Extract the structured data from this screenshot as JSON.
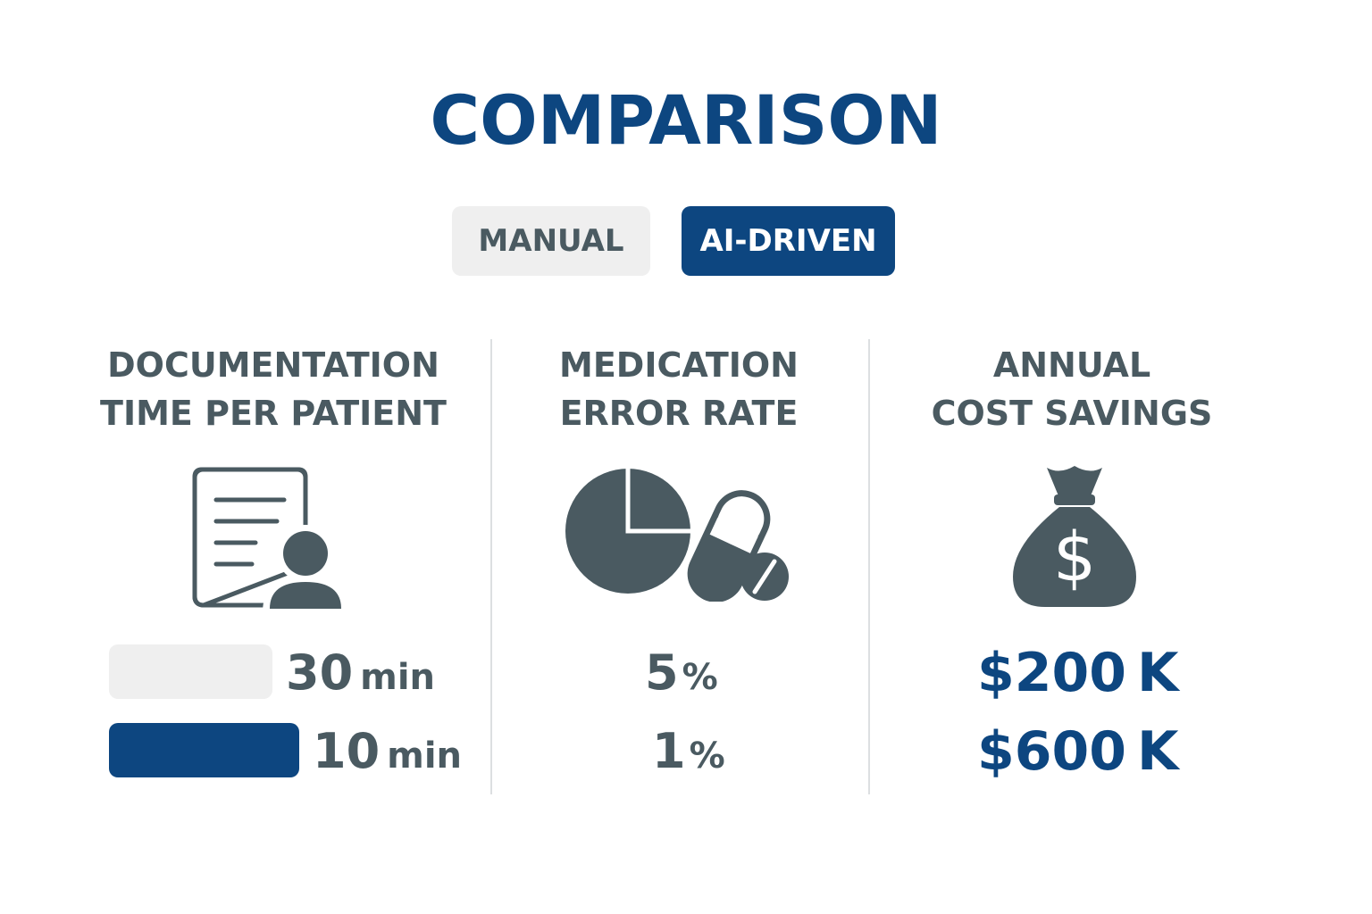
{
  "title": "COMPARISON",
  "legend": {
    "manual_label": "MANUAL",
    "ai_label": "AI-DRIVEN"
  },
  "colors": {
    "accent": "#0d4680",
    "text": "#4a5a61",
    "manual_fill": "#efefef",
    "divider": "#dcdfe1"
  },
  "metrics": [
    {
      "title_line1": "DOCUMENTATION",
      "title_line2": "TIME PER PATIENT",
      "icon": "document-patient-icon",
      "manual_value": "30",
      "manual_unit": "min",
      "ai_value": "10",
      "ai_unit": "min"
    },
    {
      "title_line1": "MEDICATION",
      "title_line2": "ERROR RATE",
      "icon": "pie-chart-pills-icon",
      "manual_value": "5",
      "manual_unit": "%",
      "ai_value": "1",
      "ai_unit": "%"
    },
    {
      "title_line1": "ANNUAL",
      "title_line2": "COST SAVINGS",
      "icon": "money-bag-icon",
      "manual_value": "$200",
      "manual_unit": "K",
      "ai_value": "$600",
      "ai_unit": "K"
    }
  ]
}
